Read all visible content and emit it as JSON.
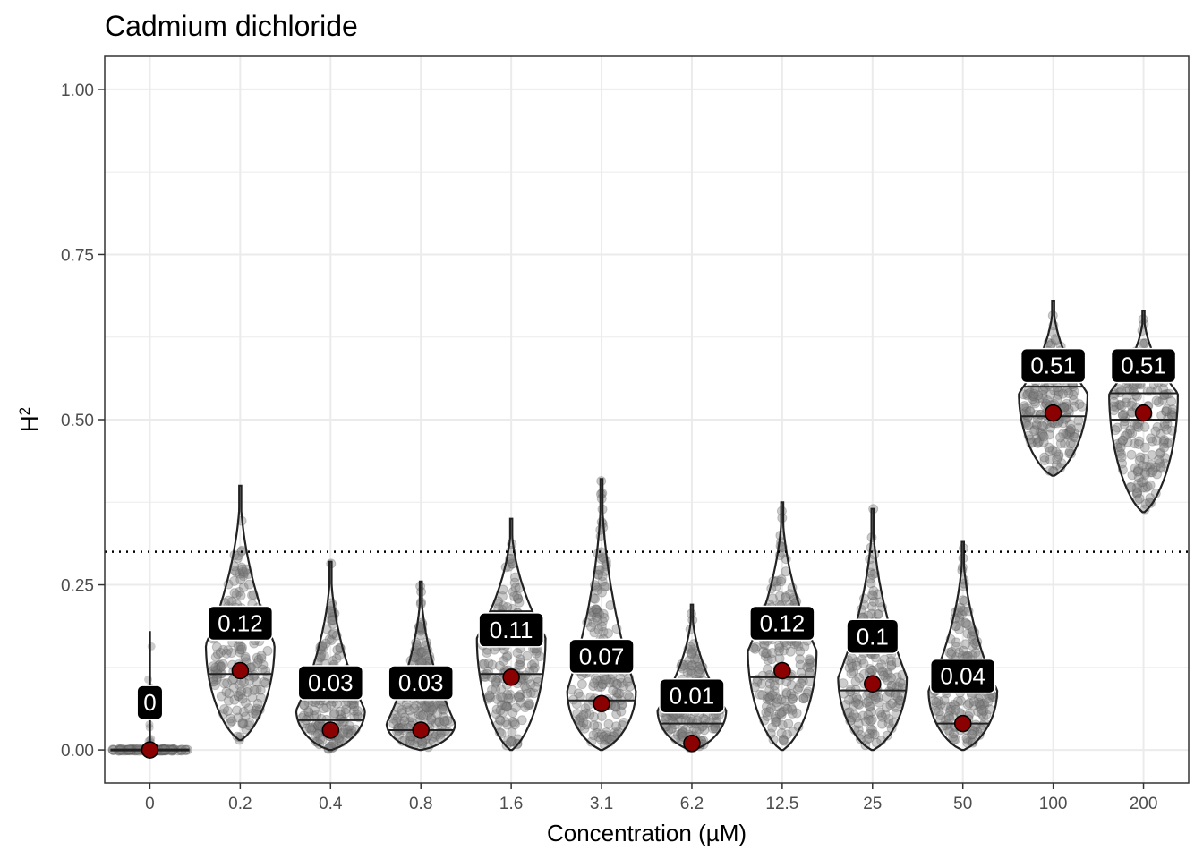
{
  "chart_data": {
    "type": "violin",
    "title": "Cadmium dichloride",
    "xlabel": "Concentration (µM)",
    "ylabel": "H",
    "ylabel_superscript": "2",
    "ylim": [
      -0.05,
      1.05
    ],
    "yticks": [
      0.0,
      0.25,
      0.5,
      0.75,
      1.0
    ],
    "ytick_labels": [
      "0.00",
      "0.25",
      "0.50",
      "0.75",
      "1.00"
    ],
    "threshold_line": 0.3,
    "grid": true,
    "categories": [
      "0",
      "0.2",
      "0.4",
      "0.8",
      "1.6",
      "3.1",
      "6.2",
      "12.5",
      "25",
      "50",
      "100",
      "200"
    ],
    "medians": [
      0,
      0.12,
      0.03,
      0.03,
      0.11,
      0.07,
      0.01,
      0.12,
      0.1,
      0.04,
      0.51,
      0.51
    ],
    "median_labels": [
      "0",
      "0.12",
      "0.03",
      "0.03",
      "0.11",
      "0.07",
      "0.01",
      "0.12",
      "0.1",
      "0.04",
      "0.51",
      "0.51"
    ],
    "distributions": [
      {
        "min": 0.0,
        "max": 0.18,
        "q1": 0.0,
        "q3": 0.0,
        "mode": 0.0,
        "widthFrac": 0.0,
        "spike": true
      },
      {
        "min": 0.015,
        "max": 0.4,
        "q1": 0.115,
        "q3": 0.215,
        "mode": 0.16,
        "widthFrac": 0.32
      },
      {
        "min": 0.0,
        "max": 0.285,
        "q1": 0.045,
        "q3": 0.12,
        "mode": 0.06,
        "widthFrac": 0.32
      },
      {
        "min": 0.0,
        "max": 0.255,
        "q1": 0.03,
        "q3": 0.095,
        "mode": 0.04,
        "widthFrac": 0.32
      },
      {
        "min": 0.0,
        "max": 0.35,
        "q1": 0.115,
        "q3": 0.21,
        "mode": 0.17,
        "widthFrac": 0.32
      },
      {
        "min": 0.0,
        "max": 0.41,
        "q1": 0.075,
        "q3": 0.165,
        "mode": 0.09,
        "widthFrac": 0.32
      },
      {
        "min": 0.0,
        "max": 0.22,
        "q1": 0.04,
        "q3": 0.095,
        "mode": 0.06,
        "widthFrac": 0.32
      },
      {
        "min": 0.0,
        "max": 0.375,
        "q1": 0.11,
        "q3": 0.2,
        "mode": 0.15,
        "widthFrac": 0.32
      },
      {
        "min": 0.0,
        "max": 0.365,
        "q1": 0.09,
        "q3": 0.18,
        "mode": 0.11,
        "widthFrac": 0.32
      },
      {
        "min": 0.0,
        "max": 0.315,
        "q1": 0.04,
        "q3": 0.115,
        "mode": 0.09,
        "widthFrac": 0.32
      },
      {
        "min": 0.415,
        "max": 0.68,
        "q1": 0.505,
        "q3": 0.55,
        "mode": 0.54,
        "widthFrac": 0.32
      },
      {
        "min": 0.36,
        "max": 0.665,
        "q1": 0.5,
        "q3": 0.54,
        "mode": 0.54,
        "widthFrac": 0.32
      }
    ],
    "colors": {
      "panel_border": "#333333",
      "grid": "#ebebeb",
      "violin_stroke": "#222222",
      "points": "#808080",
      "median_point": "#8b0000",
      "label_bg": "#000000",
      "label_text": "#ffffff"
    }
  }
}
